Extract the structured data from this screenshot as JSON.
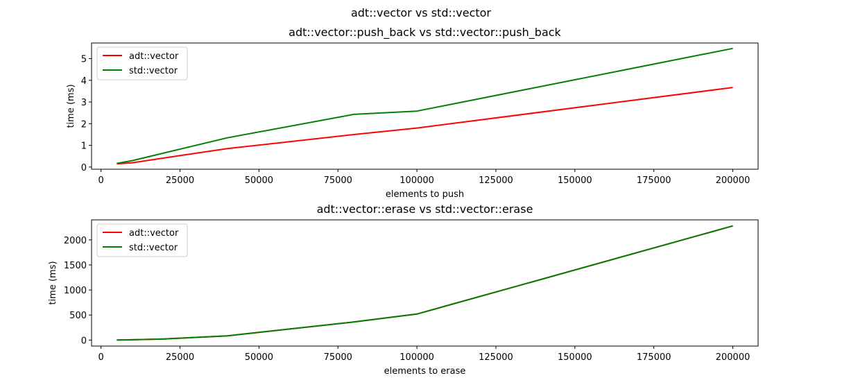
{
  "figure": {
    "suptitle": "adt::vector vs std::vector"
  },
  "chart_data": [
    {
      "type": "line",
      "title": "adt::vector::push_back vs std::vector::push_back",
      "xlabel": "elements to push",
      "ylabel": "time (ms)",
      "xlim": [
        -3000,
        208000
      ],
      "ylim": [
        -0.1,
        5.72
      ],
      "xticks": [
        0,
        25000,
        50000,
        75000,
        100000,
        125000,
        150000,
        175000,
        200000
      ],
      "yticks": [
        0,
        1,
        2,
        3,
        4,
        5
      ],
      "legend": "upper-left",
      "grid": false,
      "series": [
        {
          "name": "adt::vector",
          "color": "#ff0000",
          "x": [
            5000,
            10000,
            20000,
            40000,
            80000,
            100000,
            200000
          ],
          "y": [
            0.15,
            0.2,
            0.42,
            0.85,
            1.5,
            1.8,
            3.67
          ]
        },
        {
          "name": "std::vector",
          "color": "#008000",
          "x": [
            5000,
            10000,
            20000,
            40000,
            80000,
            100000,
            200000
          ],
          "y": [
            0.17,
            0.3,
            0.65,
            1.35,
            2.43,
            2.58,
            5.47
          ]
        }
      ]
    },
    {
      "type": "line",
      "title": "adt::vector::erase vs std::vector::erase",
      "xlabel": "elements to erase",
      "ylabel": "time (ms)",
      "xlim": [
        -3000,
        208000
      ],
      "ylim": [
        -120,
        2400
      ],
      "xticks": [
        0,
        25000,
        50000,
        75000,
        100000,
        125000,
        150000,
        175000,
        200000
      ],
      "yticks": [
        0,
        500,
        1000,
        1500,
        2000
      ],
      "legend": "upper-left",
      "grid": false,
      "series": [
        {
          "name": "adt::vector",
          "color": "#ff0000",
          "x": [
            5000,
            10000,
            20000,
            40000,
            80000,
            100000,
            200000
          ],
          "y": [
            2,
            6,
            22,
            85,
            360,
            520,
            2280
          ]
        },
        {
          "name": "std::vector",
          "color": "#008000",
          "x": [
            5000,
            10000,
            20000,
            40000,
            80000,
            100000,
            200000
          ],
          "y": [
            2,
            6,
            22,
            85,
            360,
            520,
            2280
          ]
        }
      ]
    }
  ]
}
